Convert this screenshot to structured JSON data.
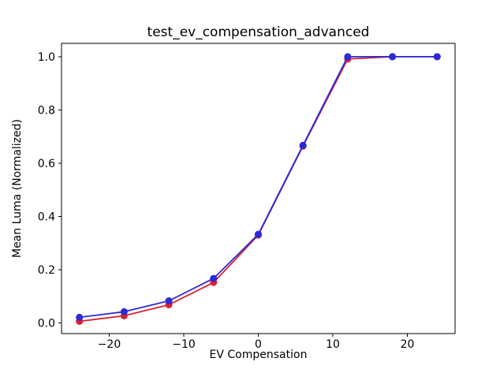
{
  "chart_data": {
    "type": "line",
    "title": "test_ev_compensation_advanced",
    "xlabel": "EV Compensation",
    "ylabel": "Mean Luma (Normalized)",
    "x": [
      -24,
      -18,
      -12,
      -6,
      0,
      6,
      12,
      18,
      24
    ],
    "series": [
      {
        "name": "red-series",
        "color": "#dc2030",
        "marker": "circle",
        "values": [
          0.006,
          0.027,
          0.068,
          0.152,
          0.33,
          0.664,
          0.991,
          1.0,
          1.0
        ]
      },
      {
        "name": "blue-series",
        "color": "#2a2ad8",
        "marker": "circle",
        "values": [
          0.021,
          0.042,
          0.083,
          0.167,
          0.333,
          0.667,
          1.0,
          1.0,
          1.0
        ]
      }
    ],
    "x_ticks": [
      -20,
      -10,
      0,
      10,
      20
    ],
    "x_tick_labels": [
      "−20",
      "−10",
      "0",
      "10",
      "20"
    ],
    "y_ticks": [
      0.0,
      0.2,
      0.4,
      0.6,
      0.8,
      1.0
    ],
    "y_tick_labels": [
      "0.0",
      "0.2",
      "0.4",
      "0.6",
      "0.8",
      "1.0"
    ],
    "xlim": [
      -26.4,
      26.4
    ],
    "ylim": [
      -0.04,
      1.05
    ],
    "grid": false,
    "legend": "none",
    "axis_color": "#000000",
    "text_color": "#000000",
    "background": "#ffffff"
  }
}
